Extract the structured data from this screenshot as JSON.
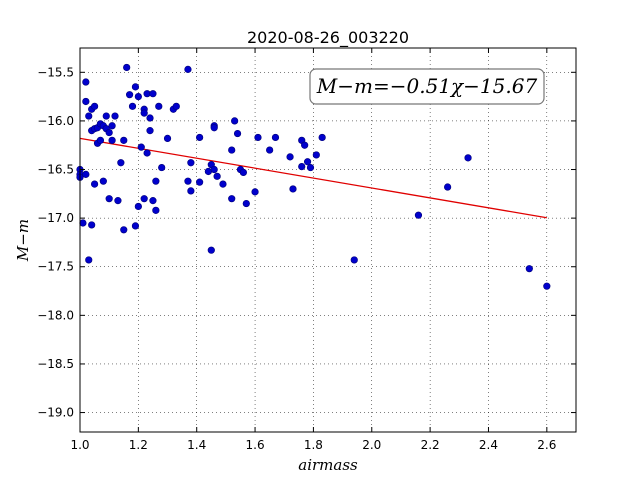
{
  "chart_data": {
    "type": "scatter",
    "title": "2020-08-26_003220",
    "xlabel": "airmass",
    "ylabel": "M−m",
    "annotation": "M−m=−0.51χ−15.67",
    "xlim": [
      1.0,
      2.7
    ],
    "ylim": [
      -19.2,
      -15.25
    ],
    "x_ticks": [
      1.0,
      1.2,
      1.4,
      1.6,
      1.8,
      2.0,
      2.2,
      2.4,
      2.6
    ],
    "x_tick_labels": [
      "1.0",
      "1.2",
      "1.4",
      "1.6",
      "1.8",
      "2.0",
      "2.2",
      "2.4",
      "2.6"
    ],
    "y_ticks": [
      -15.5,
      -16.0,
      -16.5,
      -17.0,
      -17.5,
      -18.0,
      -18.5,
      -19.0
    ],
    "y_tick_labels": [
      "−15.5",
      "−16.0",
      "−16.5",
      "−17.0",
      "−17.5",
      "−18.0",
      "−18.5",
      "−19.0"
    ],
    "grid": true,
    "colors": {
      "points": "#0000cc",
      "points_edge": "#00007a",
      "fit_line": "#e00000"
    },
    "fit": {
      "slope": -0.51,
      "intercept": -15.67,
      "x_range": [
        1.0,
        2.6
      ]
    },
    "points": {
      "x": [
        1.0,
        1.0,
        1.0,
        1.01,
        1.02,
        1.02,
        1.02,
        1.03,
        1.03,
        1.04,
        1.04,
        1.04,
        1.05,
        1.05,
        1.05,
        1.06,
        1.06,
        1.07,
        1.07,
        1.08,
        1.08,
        1.09,
        1.09,
        1.1,
        1.1,
        1.11,
        1.11,
        1.12,
        1.13,
        1.14,
        1.15,
        1.15,
        1.16,
        1.17,
        1.18,
        1.19,
        1.19,
        1.2,
        1.2,
        1.21,
        1.22,
        1.22,
        1.22,
        1.23,
        1.23,
        1.24,
        1.24,
        1.25,
        1.25,
        1.26,
        1.26,
        1.27,
        1.28,
        1.3,
        1.32,
        1.33,
        1.37,
        1.37,
        1.38,
        1.38,
        1.41,
        1.41,
        1.44,
        1.45,
        1.45,
        1.46,
        1.46,
        1.46,
        1.47,
        1.49,
        1.52,
        1.52,
        1.53,
        1.54,
        1.55,
        1.56,
        1.57,
        1.6,
        1.61,
        1.65,
        1.67,
        1.72,
        1.73,
        1.76,
        1.76,
        1.77,
        1.78,
        1.79,
        1.81,
        1.83,
        1.94,
        2.16,
        2.26,
        2.33,
        2.54,
        2.6
      ],
      "y": [
        -16.5,
        -16.55,
        -16.58,
        -17.05,
        -15.6,
        -15.8,
        -16.55,
        -17.43,
        -15.95,
        -16.1,
        -15.88,
        -17.07,
        -15.85,
        -16.08,
        -16.65,
        -16.23,
        -16.07,
        -16.2,
        -16.03,
        -16.62,
        -16.05,
        -15.95,
        -16.08,
        -16.12,
        -16.8,
        -16.05,
        -16.2,
        -15.95,
        -16.82,
        -16.43,
        -16.2,
        -17.12,
        -15.45,
        -15.73,
        -15.85,
        -17.08,
        -15.65,
        -16.88,
        -15.75,
        -16.27,
        -15.88,
        -15.92,
        -16.8,
        -16.33,
        -15.72,
        -16.1,
        -15.97,
        -16.82,
        -15.72,
        -16.92,
        -16.62,
        -15.85,
        -16.48,
        -16.18,
        -15.88,
        -15.85,
        -16.62,
        -15.47,
        -16.43,
        -16.72,
        -16.63,
        -16.17,
        -16.52,
        -17.33,
        -16.45,
        -16.5,
        -16.05,
        -16.07,
        -16.57,
        -16.65,
        -16.8,
        -16.3,
        -16.0,
        -16.13,
        -16.5,
        -16.53,
        -16.85,
        -16.73,
        -16.17,
        -16.3,
        -16.17,
        -16.37,
        -16.7,
        -16.47,
        -16.2,
        -16.25,
        -16.42,
        -16.48,
        -16.35,
        -16.17,
        -17.43,
        -16.97,
        -16.68,
        -16.38,
        -17.52,
        -17.7
      ]
    }
  }
}
